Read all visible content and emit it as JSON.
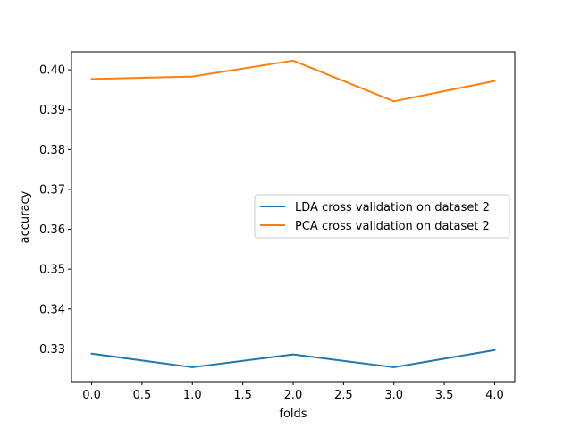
{
  "chart_data": {
    "type": "line",
    "title": "",
    "xlabel": "folds",
    "ylabel": "accuracy",
    "xlim": [
      -0.2,
      4.2
    ],
    "ylim": [
      0.3218,
      0.4045
    ],
    "xticks": [
      0.0,
      0.5,
      1.0,
      1.5,
      2.0,
      2.5,
      3.0,
      3.5,
      4.0
    ],
    "xtick_labels": [
      "0.0",
      "0.5",
      "1.0",
      "1.5",
      "2.0",
      "2.5",
      "3.0",
      "3.5",
      "4.0"
    ],
    "yticks": [
      0.33,
      0.34,
      0.35,
      0.36,
      0.37,
      0.38,
      0.39,
      0.4
    ],
    "ytick_labels": [
      "0.33",
      "0.34",
      "0.35",
      "0.36",
      "0.37",
      "0.38",
      "0.39",
      "0.40"
    ],
    "grid": false,
    "legend_position": "center-right",
    "x": [
      0,
      1,
      2,
      3,
      4
    ],
    "series": [
      {
        "name": "LDA cross validation on dataset 2",
        "color": "#1f77b4",
        "values": [
          0.3288,
          0.3254,
          0.3286,
          0.3254,
          0.3297
        ]
      },
      {
        "name": "PCA cross validation on dataset 2",
        "color": "#ff7f0e",
        "values": [
          0.3977,
          0.3983,
          0.4023,
          0.3921,
          0.3972
        ]
      }
    ]
  }
}
